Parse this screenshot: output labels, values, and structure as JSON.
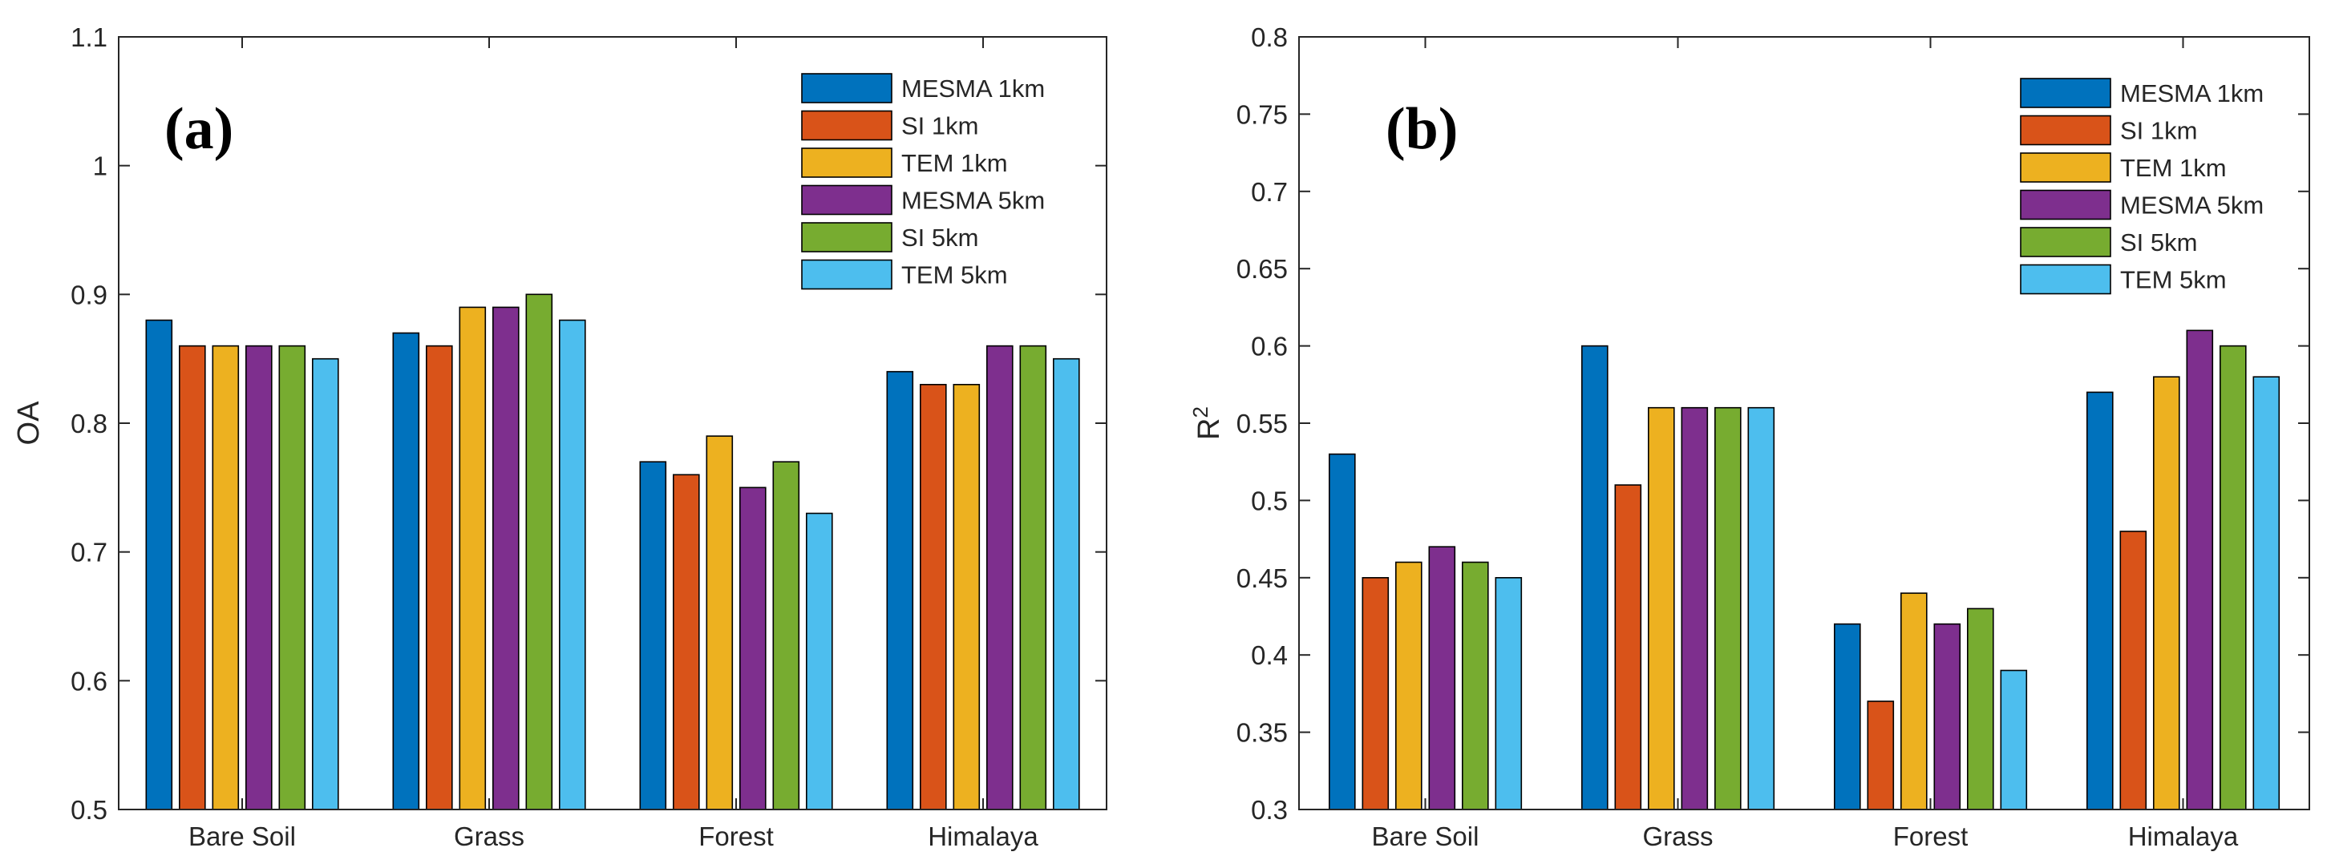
{
  "colors": {
    "MESMA 1km": "#0072BD",
    "SI 1km": "#D95319",
    "TEM 1km": "#EDB120",
    "MESMA 5km": "#7E2F8E",
    "SI 5km": "#77AC30",
    "TEM 5km": "#4DBEEE"
  },
  "chart_data": [
    {
      "type": "bar",
      "panel_label": "(a)",
      "title": "",
      "xlabel": "",
      "ylabel": "OA",
      "ylabel_sup": "",
      "ylim": [
        0.5,
        1.1
      ],
      "yticks": [
        "0.5",
        "0.6",
        "0.7",
        "0.8",
        "0.9",
        "1",
        "1.1"
      ],
      "grid": false,
      "legend_position": "top-right",
      "categories": [
        "Bare Soil",
        "Grass",
        "Forest",
        "Himalaya"
      ],
      "series": [
        {
          "name": "MESMA 1km",
          "values": [
            0.88,
            0.87,
            0.77,
            0.84
          ]
        },
        {
          "name": "SI 1km",
          "values": [
            0.86,
            0.86,
            0.76,
            0.83
          ]
        },
        {
          "name": "TEM 1km",
          "values": [
            0.86,
            0.89,
            0.79,
            0.83
          ]
        },
        {
          "name": "MESMA 5km",
          "values": [
            0.86,
            0.89,
            0.75,
            0.86
          ]
        },
        {
          "name": "SI 5km",
          "values": [
            0.86,
            0.9,
            0.77,
            0.86
          ]
        },
        {
          "name": "TEM 5km",
          "values": [
            0.85,
            0.88,
            0.73,
            0.85
          ]
        }
      ]
    },
    {
      "type": "bar",
      "panel_label": "(b)",
      "title": "",
      "xlabel": "",
      "ylabel": "R",
      "ylabel_sup": "2",
      "ylim": [
        0.3,
        0.8
      ],
      "yticks": [
        "0.3",
        "0.35",
        "0.4",
        "0.45",
        "0.5",
        "0.55",
        "0.6",
        "0.65",
        "0.7",
        "0.75",
        "0.8"
      ],
      "grid": false,
      "legend_position": "top-right",
      "categories": [
        "Bare Soil",
        "Grass",
        "Forest",
        "Himalaya"
      ],
      "series": [
        {
          "name": "MESMA 1km",
          "values": [
            0.53,
            0.6,
            0.42,
            0.57
          ]
        },
        {
          "name": "SI 1km",
          "values": [
            0.45,
            0.51,
            0.37,
            0.48
          ]
        },
        {
          "name": "TEM 1km",
          "values": [
            0.46,
            0.56,
            0.44,
            0.58
          ]
        },
        {
          "name": "MESMA 5km",
          "values": [
            0.47,
            0.56,
            0.42,
            0.61
          ]
        },
        {
          "name": "SI 5km",
          "values": [
            0.46,
            0.56,
            0.43,
            0.6
          ]
        },
        {
          "name": "TEM 5km",
          "values": [
            0.45,
            0.56,
            0.39,
            0.58
          ]
        }
      ]
    }
  ]
}
